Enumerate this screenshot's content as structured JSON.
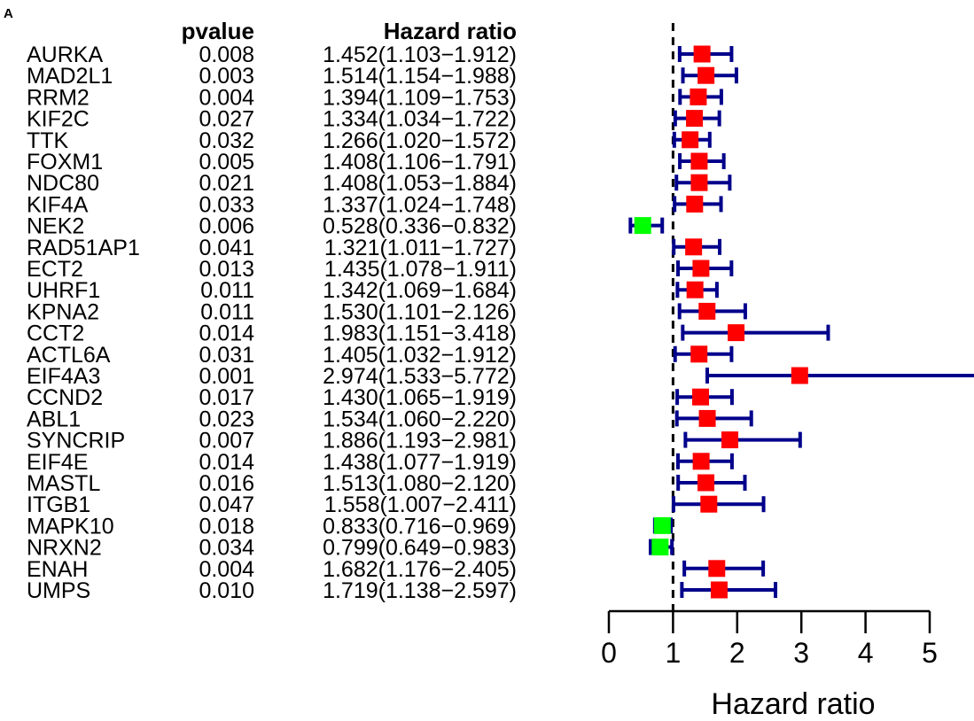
{
  "panel_label": "A",
  "colors": {
    "ci_line": "#00008B",
    "risk_box": "#FF0000",
    "protective_box": "#00FF00",
    "reference_line": "#000000",
    "text": "#000000"
  },
  "chart_data": {
    "type": "forest",
    "title": "",
    "column_headers": {
      "pvalue": "pvalue",
      "hazard_ratio": "Hazard ratio"
    },
    "xlabel": "Hazard ratio",
    "xlim": [
      0,
      5.76
    ],
    "xticks": [
      0,
      1,
      2,
      3,
      4,
      5
    ],
    "reference_value": 1,
    "grid": false,
    "rows": [
      {
        "gene": "AURKA",
        "pvalue": "0.008",
        "hr_text": "1.452(1.103−1.912)",
        "hr": 1.452,
        "lower": 1.103,
        "upper": 1.912
      },
      {
        "gene": "MAD2L1",
        "pvalue": "0.003",
        "hr_text": "1.514(1.154−1.988)",
        "hr": 1.514,
        "lower": 1.154,
        "upper": 1.988
      },
      {
        "gene": "RRM2",
        "pvalue": "0.004",
        "hr_text": "1.394(1.109−1.753)",
        "hr": 1.394,
        "lower": 1.109,
        "upper": 1.753
      },
      {
        "gene": "KIF2C",
        "pvalue": "0.027",
        "hr_text": "1.334(1.034−1.722)",
        "hr": 1.334,
        "lower": 1.034,
        "upper": 1.722
      },
      {
        "gene": "TTK",
        "pvalue": "0.032",
        "hr_text": "1.266(1.020−1.572)",
        "hr": 1.266,
        "lower": 1.02,
        "upper": 1.572
      },
      {
        "gene": "FOXM1",
        "pvalue": "0.005",
        "hr_text": "1.408(1.106−1.791)",
        "hr": 1.408,
        "lower": 1.106,
        "upper": 1.791
      },
      {
        "gene": "NDC80",
        "pvalue": "0.021",
        "hr_text": "1.408(1.053−1.884)",
        "hr": 1.408,
        "lower": 1.053,
        "upper": 1.884
      },
      {
        "gene": "KIF4A",
        "pvalue": "0.033",
        "hr_text": "1.337(1.024−1.748)",
        "hr": 1.337,
        "lower": 1.024,
        "upper": 1.748
      },
      {
        "gene": "NEK2",
        "pvalue": "0.006",
        "hr_text": "0.528(0.336−0.832)",
        "hr": 0.528,
        "lower": 0.336,
        "upper": 0.832
      },
      {
        "gene": "RAD51AP1",
        "pvalue": "0.041",
        "hr_text": "1.321(1.011−1.727)",
        "hr": 1.321,
        "lower": 1.011,
        "upper": 1.727
      },
      {
        "gene": "ECT2",
        "pvalue": "0.013",
        "hr_text": "1.435(1.078−1.911)",
        "hr": 1.435,
        "lower": 1.078,
        "upper": 1.911
      },
      {
        "gene": "UHRF1",
        "pvalue": "0.011",
        "hr_text": "1.342(1.069−1.684)",
        "hr": 1.342,
        "lower": 1.069,
        "upper": 1.684
      },
      {
        "gene": "KPNA2",
        "pvalue": "0.011",
        "hr_text": "1.530(1.101−2.126)",
        "hr": 1.53,
        "lower": 1.101,
        "upper": 2.126
      },
      {
        "gene": "CCT2",
        "pvalue": "0.014",
        "hr_text": "1.983(1.151−3.418)",
        "hr": 1.983,
        "lower": 1.151,
        "upper": 3.418
      },
      {
        "gene": "ACTL6A",
        "pvalue": "0.031",
        "hr_text": "1.405(1.032−1.912)",
        "hr": 1.405,
        "lower": 1.032,
        "upper": 1.912
      },
      {
        "gene": "EIF4A3",
        "pvalue": "0.001",
        "hr_text": "2.974(1.533−5.772)",
        "hr": 2.974,
        "lower": 1.533,
        "upper": 5.772
      },
      {
        "gene": "CCND2",
        "pvalue": "0.017",
        "hr_text": "1.430(1.065−1.919)",
        "hr": 1.43,
        "lower": 1.065,
        "upper": 1.919
      },
      {
        "gene": "ABL1",
        "pvalue": "0.023",
        "hr_text": "1.534(1.060−2.220)",
        "hr": 1.534,
        "lower": 1.06,
        "upper": 2.22
      },
      {
        "gene": "SYNCRIP",
        "pvalue": "0.007",
        "hr_text": "1.886(1.193−2.981)",
        "hr": 1.886,
        "lower": 1.193,
        "upper": 2.981
      },
      {
        "gene": "EIF4E",
        "pvalue": "0.014",
        "hr_text": "1.438(1.077−1.919)",
        "hr": 1.438,
        "lower": 1.077,
        "upper": 1.919
      },
      {
        "gene": "MASTL",
        "pvalue": "0.016",
        "hr_text": "1.513(1.080−2.120)",
        "hr": 1.513,
        "lower": 1.08,
        "upper": 2.12
      },
      {
        "gene": "ITGB1",
        "pvalue": "0.047",
        "hr_text": "1.558(1.007−2.411)",
        "hr": 1.558,
        "lower": 1.007,
        "upper": 2.411
      },
      {
        "gene": "MAPK10",
        "pvalue": "0.018",
        "hr_text": "0.833(0.716−0.969)",
        "hr": 0.833,
        "lower": 0.716,
        "upper": 0.969
      },
      {
        "gene": "NRXN2",
        "pvalue": "0.034",
        "hr_text": "0.799(0.649−0.983)",
        "hr": 0.799,
        "lower": 0.649,
        "upper": 0.983
      },
      {
        "gene": "ENAH",
        "pvalue": "0.004",
        "hr_text": "1.682(1.176−2.405)",
        "hr": 1.682,
        "lower": 1.176,
        "upper": 2.405
      },
      {
        "gene": "UMPS",
        "pvalue": "0.010",
        "hr_text": "1.719(1.138−2.597)",
        "hr": 1.719,
        "lower": 1.138,
        "upper": 2.597
      }
    ]
  }
}
